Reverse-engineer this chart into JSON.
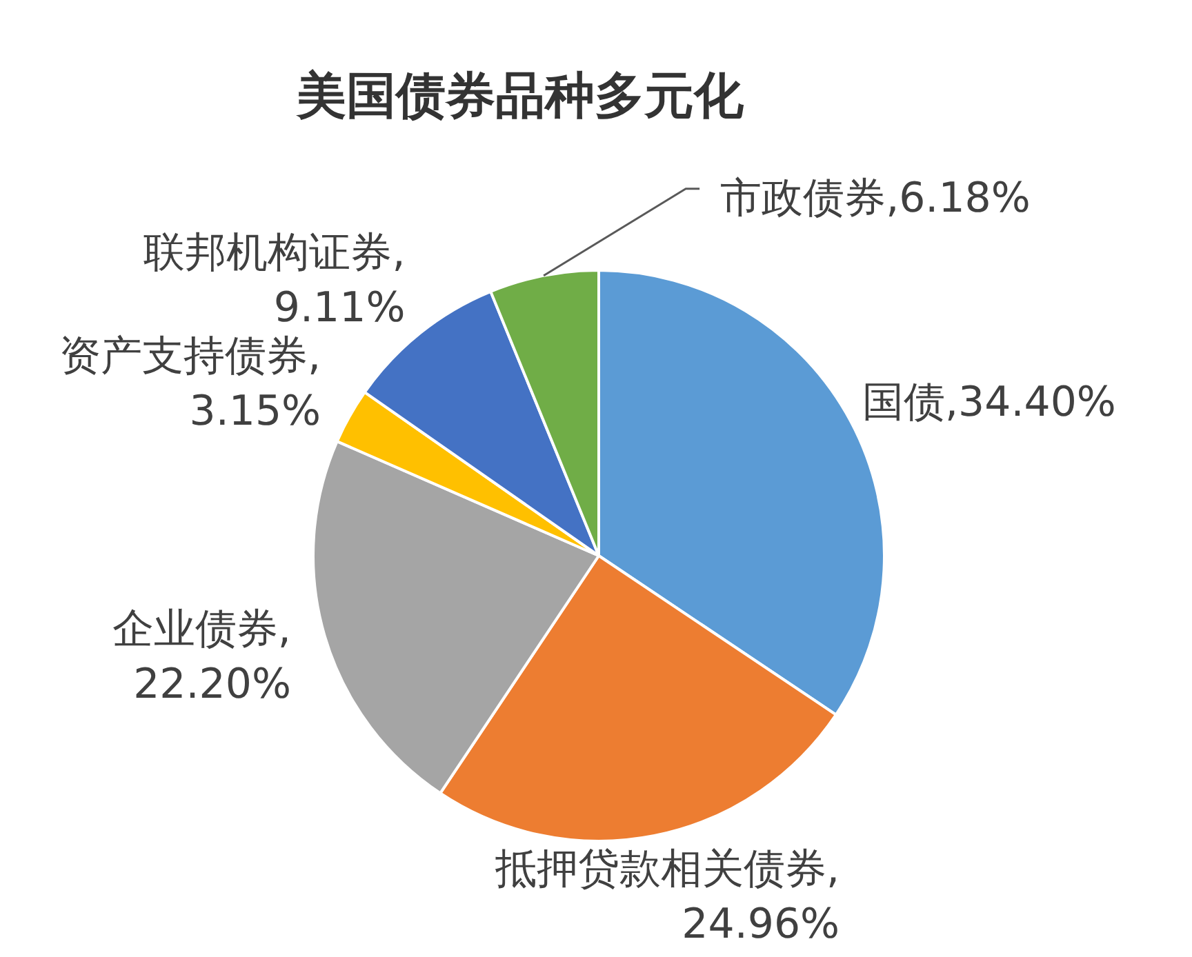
{
  "chart_data": {
    "type": "pie",
    "title": "美国债券品种多元化",
    "categories": [
      "国债",
      "抵押贷款相关债券",
      "企业债券",
      "资产支持债券",
      "联邦机构证券",
      "市政债券"
    ],
    "values": [
      34.4,
      24.96,
      22.2,
      3.15,
      9.11,
      6.18
    ],
    "value_labels": [
      ",34.40%",
      ",24.96%",
      ",22.20%",
      ",3.15%",
      ",9.11%",
      ",6.18%"
    ],
    "colors": [
      "#5b9bd5",
      "#ed7d31",
      "#a5a5a5",
      "#ffc000",
      "#4472c4",
      "#70ad47"
    ]
  }
}
